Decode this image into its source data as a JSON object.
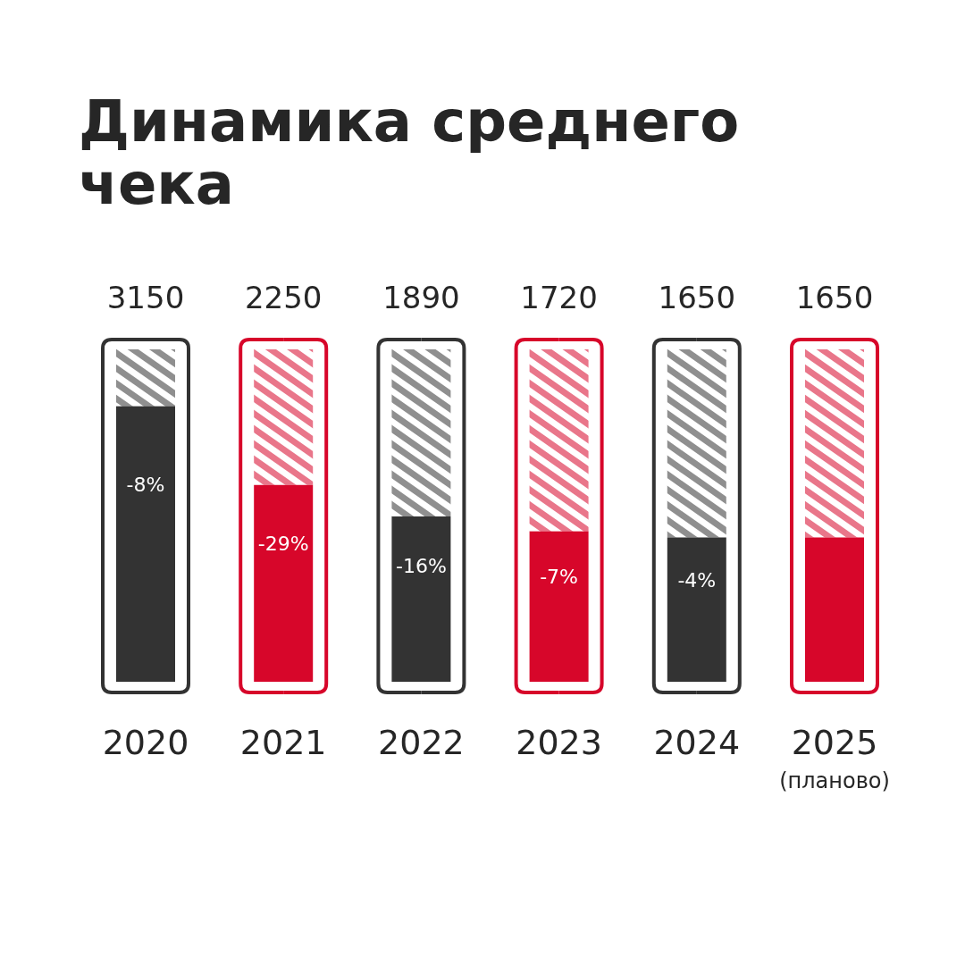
{
  "chart_data": {
    "type": "bar",
    "title": "Динамика среднего чека",
    "categories": [
      "2020",
      "2021",
      "2022",
      "2023",
      "2024",
      "2025\n(планово)"
    ],
    "values": [
      3150,
      2250,
      1890,
      1720,
      1650,
      1650
    ],
    "colors": [
      "#333333",
      "#d7062a",
      "#333333",
      "#d7062a",
      "#333333",
      "#d7062a"
    ],
    "tick_labels": "x",
    "data_labels": true,
    "annotations": [
      "-8%",
      "-29%",
      "-16%",
      "-7%",
      "-4%"
    ]
  }
}
